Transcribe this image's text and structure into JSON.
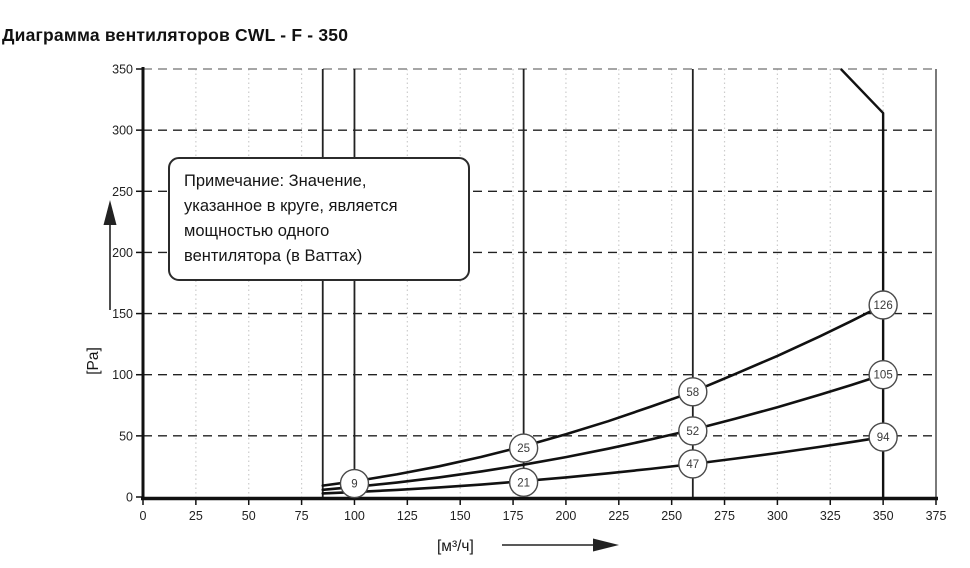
{
  "page": {
    "title": "Диаграмма вентиляторов CWL - F - 350"
  },
  "note": {
    "lines": [
      "Примечание: Значение,",
      "указанное в круге, является",
      "мощностью одного",
      "вентилятора (в Ваттах)"
    ]
  },
  "colors": {
    "line": "#111111",
    "grid_dashed": "#222222",
    "grid_dotted": "#cccccc",
    "top_border_dashed": "#888888",
    "circle_stroke": "#4a4a4a",
    "circle_fill": "#ffffff",
    "text": "#222222"
  },
  "chart_data": {
    "type": "line",
    "title": "Диаграмма вентиляторов CWL - F - 350",
    "xlabel": "[м³/ч]",
    "ylabel": "[Pa]",
    "xlim": [
      0,
      375
    ],
    "ylim": [
      0,
      350
    ],
    "x_ticks": [
      0,
      25,
      50,
      75,
      100,
      125,
      150,
      175,
      200,
      225,
      250,
      275,
      300,
      325,
      350,
      375
    ],
    "y_ticks": [
      0,
      50,
      100,
      150,
      200,
      250,
      300,
      350
    ],
    "grid": {
      "horizontal": "black dashed every 50 Pa",
      "vertical": "light gray dotted every 25 м³/ч",
      "legend": "none"
    },
    "reference_vlines_x": [
      85,
      100,
      180,
      260
    ],
    "limit_line_points": [
      [
        350,
        0
      ],
      [
        350,
        314
      ],
      [
        330,
        350
      ]
    ],
    "series": [
      {
        "name": "fan-curve-high",
        "points": [
          [
            85,
            9.3
          ],
          [
            100,
            12.8
          ],
          [
            120,
            18.5
          ],
          [
            140,
            25.1
          ],
          [
            160,
            32.8
          ],
          [
            180,
            41.5
          ],
          [
            200,
            51.3
          ],
          [
            220,
            62.0
          ],
          [
            240,
            73.8
          ],
          [
            260,
            86.0
          ],
          [
            280,
            100.5
          ],
          [
            300,
            115.4
          ],
          [
            320,
            131.3
          ],
          [
            335,
            143.9
          ],
          [
            350,
            157
          ]
        ]
      },
      {
        "name": "fan-curve-mid",
        "points": [
          [
            85,
            5.9
          ],
          [
            100,
            8.2
          ],
          [
            120,
            11.8
          ],
          [
            140,
            16.0
          ],
          [
            160,
            20.9
          ],
          [
            180,
            26.4
          ],
          [
            200,
            32.6
          ],
          [
            220,
            39.5
          ],
          [
            240,
            47.0
          ],
          [
            260,
            55.0
          ],
          [
            280,
            64.0
          ],
          [
            300,
            73.4
          ],
          [
            320,
            83.6
          ],
          [
            335,
            91.6
          ],
          [
            350,
            100
          ]
        ]
      },
      {
        "name": "fan-curve-low",
        "points": [
          [
            85,
            2.9
          ],
          [
            100,
            4.0
          ],
          [
            120,
            5.8
          ],
          [
            140,
            7.8
          ],
          [
            160,
            10.2
          ],
          [
            180,
            13.0
          ],
          [
            200,
            16.0
          ],
          [
            220,
            19.4
          ],
          [
            240,
            23.0
          ],
          [
            260,
            27.0
          ],
          [
            280,
            31.4
          ],
          [
            300,
            36.0
          ],
          [
            320,
            41.0
          ],
          [
            335,
            44.9
          ],
          [
            350,
            49
          ]
        ]
      }
    ],
    "power_labels_watts": [
      {
        "value": "9",
        "x": 100,
        "y": 11
      },
      {
        "value": "25",
        "x": 180,
        "y": 40
      },
      {
        "value": "21",
        "x": 180,
        "y": 12
      },
      {
        "value": "58",
        "x": 260,
        "y": 86
      },
      {
        "value": "52",
        "x": 260,
        "y": 54
      },
      {
        "value": "47",
        "x": 260,
        "y": 27
      },
      {
        "value": "126",
        "x": 350,
        "y": 157
      },
      {
        "value": "105",
        "x": 350,
        "y": 100
      },
      {
        "value": "94",
        "x": 350,
        "y": 49
      }
    ]
  }
}
